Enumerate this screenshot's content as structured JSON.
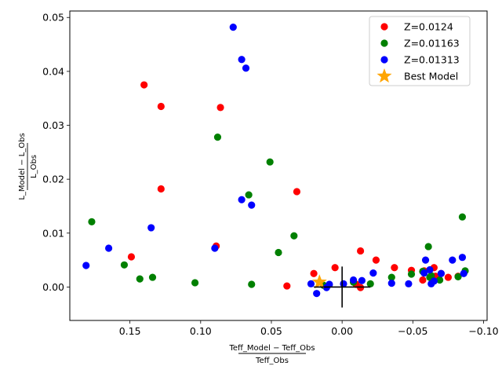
{
  "chart_data": {
    "type": "scatter",
    "xlabel": {
      "numerator": "Teff_Model − Teff_Obs",
      "denominator": "Teff_Obs"
    },
    "ylabel": {
      "numerator": "L_Model − L_Obs",
      "denominator": "L_Obs"
    },
    "xlim": [
      0.1925,
      -0.1025
    ],
    "ylim": [
      -0.0062,
      0.0512
    ],
    "x_inverted": true,
    "xticks": [
      0.15,
      0.1,
      0.05,
      0.0,
      -0.05,
      -0.1
    ],
    "xtick_labels": [
      "0.15",
      "0.10",
      "0.05",
      "0.00",
      "−0.05",
      "−0.10"
    ],
    "yticks": [
      0.0,
      0.01,
      0.02,
      0.03,
      0.04,
      0.05
    ],
    "ytick_labels": [
      "0.00",
      "0.01",
      "0.02",
      "0.03",
      "0.04",
      "0.05"
    ],
    "grid": false,
    "legend_position": "top-right",
    "series": [
      {
        "name": "Z=0.0124",
        "color": "#ff0000",
        "marker": "circle",
        "points": [
          [
            0.14,
            0.0375
          ],
          [
            0.128,
            0.0335
          ],
          [
            0.086,
            0.0333
          ],
          [
            0.128,
            0.0182
          ],
          [
            0.032,
            0.0177
          ],
          [
            0.149,
            0.0056
          ],
          [
            0.089,
            0.0076
          ],
          [
            0.039,
            0.0002
          ],
          [
            0.02,
            0.0025
          ],
          [
            0.005,
            0.0036
          ],
          [
            -0.013,
            0.0067
          ],
          [
            -0.024,
            0.005
          ],
          [
            -0.013,
            -0.0001
          ],
          [
            -0.037,
            0.0036
          ],
          [
            -0.049,
            0.0031
          ],
          [
            -0.057,
            0.0013
          ],
          [
            -0.065,
            0.0036
          ],
          [
            -0.058,
            0.003
          ],
          [
            -0.066,
            0.002
          ],
          [
            -0.07,
            0.0025
          ],
          [
            -0.075,
            0.0018
          ],
          [
            -0.082,
            0.002
          ],
          [
            -0.01,
            0.0005
          ]
        ]
      },
      {
        "name": "Z=0.01163",
        "color": "#008000",
        "marker": "circle",
        "points": [
          [
            0.177,
            0.0121
          ],
          [
            0.154,
            0.0041
          ],
          [
            0.143,
            0.0015
          ],
          [
            0.134,
            0.0018
          ],
          [
            0.104,
            0.0008
          ],
          [
            0.088,
            0.0278
          ],
          [
            0.066,
            0.0171
          ],
          [
            0.051,
            0.0232
          ],
          [
            0.064,
            0.0005
          ],
          [
            0.045,
            0.0064
          ],
          [
            0.034,
            0.0095
          ],
          [
            0.013,
            0.0003
          ],
          [
            -0.008,
            0.0009
          ],
          [
            -0.02,
            0.0006
          ],
          [
            -0.035,
            0.0018
          ],
          [
            -0.049,
            0.0024
          ],
          [
            -0.061,
            0.0075
          ],
          [
            -0.062,
            0.0018
          ],
          [
            -0.064,
            0.001
          ],
          [
            -0.069,
            0.0013
          ],
          [
            -0.085,
            0.013
          ],
          [
            -0.087,
            0.003
          ],
          [
            -0.082,
            0.0019
          ],
          [
            -0.057,
            0.0029
          ],
          [
            -0.063,
            0.0021
          ]
        ]
      },
      {
        "name": "Z=0.01313",
        "color": "#0000ff",
        "marker": "circle",
        "points": [
          [
            0.077,
            0.0482
          ],
          [
            0.071,
            0.0422
          ],
          [
            0.068,
            0.0406
          ],
          [
            0.071,
            0.0162
          ],
          [
            0.064,
            0.0152
          ],
          [
            0.135,
            0.011
          ],
          [
            0.165,
            0.0072
          ],
          [
            0.181,
            0.004
          ],
          [
            0.09,
            0.0072
          ],
          [
            0.022,
            0.0006
          ],
          [
            0.018,
            -0.0012
          ],
          [
            0.011,
            -0.0001
          ],
          [
            0.009,
            0.0005
          ],
          [
            -0.001,
            0.0006
          ],
          [
            -0.008,
            0.0013
          ],
          [
            -0.014,
            0.0012
          ],
          [
            -0.022,
            0.0026
          ],
          [
            -0.035,
            0.0007
          ],
          [
            -0.047,
            0.0006
          ],
          [
            -0.059,
            0.005
          ],
          [
            -0.058,
            0.0026
          ],
          [
            -0.062,
            0.0032
          ],
          [
            -0.063,
            0.0006
          ],
          [
            -0.065,
            0.0011
          ],
          [
            -0.07,
            0.0025
          ],
          [
            -0.078,
            0.005
          ],
          [
            -0.085,
            0.0055
          ],
          [
            -0.086,
            0.0025
          ]
        ]
      },
      {
        "name": "Best Model",
        "color": "#ffa500",
        "marker": "star",
        "points": [
          [
            0.016,
            0.0009
          ]
        ]
      }
    ],
    "crosshair": {
      "center": [
        0.0,
        0.0
      ],
      "x_half_length": 0.02,
      "y_half_length": 0.0038,
      "color": "#000000"
    }
  }
}
